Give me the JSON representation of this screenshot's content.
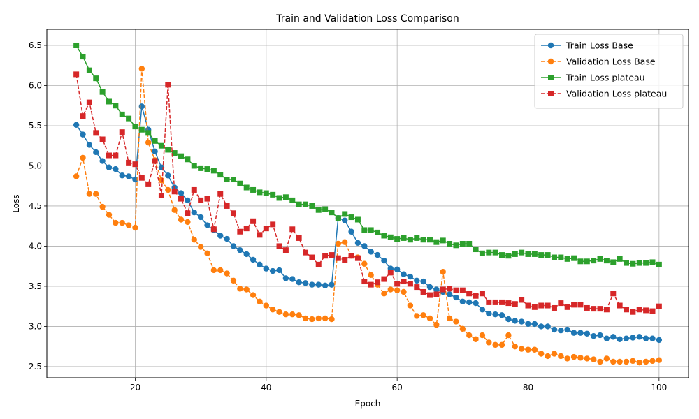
{
  "chart_data": {
    "type": "line",
    "title": "Train and Validation Loss Comparison",
    "xlabel": "Epoch",
    "ylabel": "Loss",
    "xlim": [
      6.5,
      104.5
    ],
    "ylim": [
      2.36,
      6.7
    ],
    "xticks": [
      20,
      40,
      60,
      80,
      100
    ],
    "yticks": [
      2.5,
      3.0,
      3.5,
      4.0,
      4.5,
      5.0,
      5.5,
      6.0,
      6.5
    ],
    "xtick_labels": [
      "20",
      "40",
      "60",
      "80",
      "100"
    ],
    "ytick_labels": [
      "2.5",
      "3.0",
      "3.5",
      "4.0",
      "4.5",
      "5.0",
      "5.5",
      "6.0",
      "6.5"
    ],
    "grid": true,
    "legend_position": "top-right",
    "x_start": 11,
    "series": [
      {
        "name": "Train Loss Base",
        "color": "#1f77b4",
        "linestyle": "solid",
        "marker": "circle",
        "values": [
          5.51,
          5.39,
          5.26,
          5.17,
          5.06,
          4.98,
          4.96,
          4.88,
          4.87,
          4.83,
          5.74,
          5.45,
          5.18,
          4.98,
          4.88,
          4.73,
          4.66,
          4.57,
          4.42,
          4.36,
          4.26,
          4.2,
          4.13,
          4.09,
          4.0,
          3.95,
          3.9,
          3.83,
          3.77,
          3.72,
          3.69,
          3.7,
          3.6,
          3.59,
          3.55,
          3.54,
          3.52,
          3.52,
          3.51,
          3.52,
          4.35,
          4.32,
          4.18,
          4.04,
          4.0,
          3.93,
          3.89,
          3.82,
          3.72,
          3.71,
          3.65,
          3.62,
          3.57,
          3.56,
          3.49,
          3.46,
          3.43,
          3.4,
          3.36,
          3.31,
          3.3,
          3.29,
          3.21,
          3.16,
          3.15,
          3.14,
          3.09,
          3.07,
          3.06,
          3.03,
          3.03,
          3.0,
          3.0,
          2.96,
          2.95,
          2.96,
          2.92,
          2.92,
          2.91,
          2.88,
          2.89,
          2.85,
          2.87,
          2.84,
          2.85,
          2.86,
          2.87,
          2.85,
          2.85,
          2.83
        ]
      },
      {
        "name": "Validation Loss Base",
        "color": "#ff7f0e",
        "linestyle": "dashed",
        "marker": "circle",
        "values": [
          4.87,
          5.1,
          4.65,
          4.65,
          4.49,
          4.39,
          4.29,
          4.29,
          4.26,
          4.23,
          6.21,
          5.29,
          5.07,
          4.82,
          4.7,
          4.45,
          4.33,
          4.3,
          4.08,
          3.99,
          3.91,
          3.7,
          3.7,
          3.66,
          3.57,
          3.47,
          3.46,
          3.39,
          3.31,
          3.26,
          3.21,
          3.18,
          3.15,
          3.15,
          3.14,
          3.1,
          3.09,
          3.1,
          3.1,
          3.09,
          4.03,
          4.05,
          3.88,
          3.86,
          3.78,
          3.64,
          3.52,
          3.41,
          3.46,
          3.45,
          3.43,
          3.26,
          3.13,
          3.14,
          3.1,
          3.02,
          3.68,
          3.1,
          3.06,
          2.97,
          2.89,
          2.84,
          2.89,
          2.8,
          2.77,
          2.77,
          2.89,
          2.75,
          2.72,
          2.71,
          2.71,
          2.66,
          2.63,
          2.66,
          2.63,
          2.6,
          2.62,
          2.61,
          2.6,
          2.59,
          2.56,
          2.6,
          2.56,
          2.56,
          2.56,
          2.57,
          2.55,
          2.56,
          2.57,
          2.58
        ]
      },
      {
        "name": "Train Loss plateau",
        "color": "#2ca02c",
        "linestyle": "solid",
        "marker": "square",
        "values": [
          6.5,
          6.36,
          6.19,
          6.09,
          5.92,
          5.8,
          5.75,
          5.64,
          5.59,
          5.49,
          5.45,
          5.41,
          5.31,
          5.25,
          5.2,
          5.16,
          5.12,
          5.08,
          5.0,
          4.97,
          4.96,
          4.94,
          4.89,
          4.83,
          4.83,
          4.78,
          4.73,
          4.7,
          4.67,
          4.66,
          4.64,
          4.6,
          4.61,
          4.57,
          4.52,
          4.52,
          4.5,
          4.45,
          4.46,
          4.42,
          4.35,
          4.4,
          4.36,
          4.33,
          4.2,
          4.2,
          4.17,
          4.13,
          4.11,
          4.09,
          4.1,
          4.08,
          4.1,
          4.08,
          4.08,
          4.05,
          4.07,
          4.03,
          4.01,
          4.03,
          4.03,
          3.96,
          3.91,
          3.92,
          3.92,
          3.89,
          3.88,
          3.9,
          3.92,
          3.9,
          3.9,
          3.89,
          3.89,
          3.86,
          3.86,
          3.84,
          3.85,
          3.81,
          3.81,
          3.82,
          3.84,
          3.82,
          3.8,
          3.84,
          3.79,
          3.78,
          3.79,
          3.79,
          3.8,
          3.77
        ]
      },
      {
        "name": "Validation Loss plateau",
        "color": "#d62728",
        "linestyle": "dashed",
        "marker": "square",
        "values": [
          6.14,
          5.62,
          5.79,
          5.41,
          5.33,
          5.13,
          5.13,
          5.42,
          5.04,
          5.02,
          4.85,
          4.77,
          5.06,
          4.63,
          6.01,
          4.68,
          4.59,
          4.41,
          4.7,
          4.57,
          4.59,
          4.21,
          4.65,
          4.5,
          4.41,
          4.18,
          4.22,
          4.31,
          4.14,
          4.22,
          4.27,
          4.0,
          3.95,
          4.21,
          4.1,
          3.92,
          3.86,
          3.77,
          3.88,
          3.89,
          3.85,
          3.83,
          3.88,
          3.85,
          3.56,
          3.52,
          3.55,
          3.59,
          3.67,
          3.53,
          3.56,
          3.53,
          3.49,
          3.43,
          3.39,
          3.4,
          3.46,
          3.47,
          3.45,
          3.45,
          3.41,
          3.38,
          3.41,
          3.3,
          3.3,
          3.3,
          3.29,
          3.28,
          3.33,
          3.26,
          3.24,
          3.26,
          3.26,
          3.23,
          3.29,
          3.24,
          3.27,
          3.27,
          3.23,
          3.22,
          3.22,
          3.21,
          3.41,
          3.26,
          3.21,
          3.18,
          3.21,
          3.2,
          3.19,
          3.25
        ]
      }
    ]
  }
}
